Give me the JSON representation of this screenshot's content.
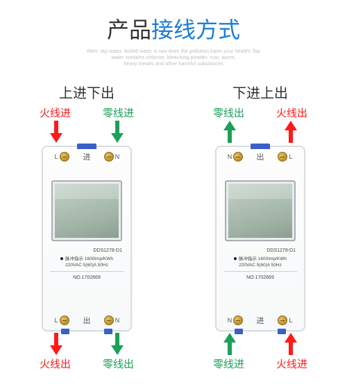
{
  "header": {
    "title_plain": "产品",
    "title_accent": "接线方式",
    "subtitle_line1": "Alert: tap water, boiled water is two does the pollution harm your health! Tap",
    "subtitle_line2": "water contains chlorine, bleaching powder, rust, worm,",
    "subtitle_line3": "heavy metals and other harmful substances",
    "title_accent_color": "#1a7dd6"
  },
  "variants": [
    {
      "title": "上进下出",
      "top_labels": [
        {
          "text": "火线进",
          "color": "red",
          "arrow_color": "#ff1a1a",
          "arrow_dir": "down"
        },
        {
          "text": "零线进",
          "color": "green",
          "arrow_color": "#1aa05a",
          "arrow_dir": "down"
        }
      ],
      "bottom_labels": [
        {
          "text": "火线出",
          "color": "red",
          "arrow_color": "#ff1a1a",
          "arrow_dir": "down"
        },
        {
          "text": "零线出",
          "color": "green",
          "arrow_color": "#1aa05a",
          "arrow_dir": "down"
        }
      ],
      "device": {
        "top_left_mark": "L",
        "top_right_mark": "N",
        "top_mode": "进",
        "bottom_left_mark": "L",
        "bottom_right_mark": "N",
        "bottom_mode": "出"
      }
    },
    {
      "title": "下进上出",
      "top_labels": [
        {
          "text": "零线出",
          "color": "green",
          "arrow_color": "#1aa05a",
          "arrow_dir": "up"
        },
        {
          "text": "火线出",
          "color": "red",
          "arrow_color": "#ff1a1a",
          "arrow_dir": "up"
        }
      ],
      "bottom_labels": [
        {
          "text": "零线进",
          "color": "green",
          "arrow_color": "#1aa05a",
          "arrow_dir": "up"
        },
        {
          "text": "火线进",
          "color": "red",
          "arrow_color": "#ff1a1a",
          "arrow_dir": "up"
        }
      ],
      "device": {
        "top_left_mark": "N",
        "top_right_mark": "L",
        "top_mode": "出",
        "bottom_left_mark": "N",
        "bottom_right_mark": "L",
        "bottom_mode": "进"
      }
    }
  ],
  "device_specs": {
    "model": "DDS1278-D1",
    "pulse": "脉冲指示 1600Imp/KWh",
    "rating": "220VAC   5(60)A   50Hz",
    "serial_prefix": "NO.",
    "serial": "1702669"
  }
}
